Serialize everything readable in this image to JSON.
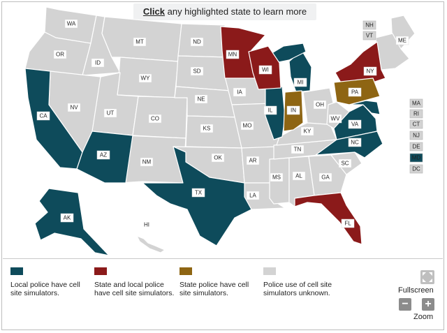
{
  "banner": {
    "link": "Click",
    "text": " any highlighted state to learn more"
  },
  "colors": {
    "local": "#0e4b5b",
    "state_and_local": "#8b1a1a",
    "state_police": "#8e6513",
    "unknown": "#d3d3d3"
  },
  "states": {
    "WA": "WA",
    "OR": "OR",
    "CA": "CA",
    "ID": "ID",
    "NV": "NV",
    "MT": "MT",
    "WY": "WY",
    "UT": "UT",
    "AZ": "AZ",
    "CO": "CO",
    "NM": "NM",
    "ND": "ND",
    "SD": "SD",
    "NE": "NE",
    "KS": "KS",
    "OK": "OK",
    "TX": "TX",
    "MN": "MN",
    "IA": "IA",
    "MO": "MO",
    "AR": "AR",
    "LA": "LA",
    "WI": "WI",
    "IL": "IL",
    "MI": "MI",
    "IN": "IN",
    "OH": "OH",
    "KY": "KY",
    "TN": "TN",
    "MS": "MS",
    "AL": "AL",
    "GA": "GA",
    "FL": "FL",
    "SC": "SC",
    "NC": "NC",
    "VA": "VA",
    "WV": "WV",
    "PA": "PA",
    "NY": "NY",
    "ME": "ME",
    "AK": "AK",
    "HI": "HI"
  },
  "side_states": {
    "NH": "NH",
    "VT": "VT",
    "MA": "MA",
    "RI": "RI",
    "CT": "CT",
    "NJ": "NJ",
    "DE": "DE",
    "MD": "MD",
    "DC": "DC"
  },
  "legend": [
    {
      "key": "local",
      "label": "Local police have cell site simulators."
    },
    {
      "key": "state_and_local",
      "label": "State and local police have cell site simulators."
    },
    {
      "key": "state_police",
      "label": "State police have cell site simulators."
    },
    {
      "key": "unknown",
      "label": "Police use of cell site simulators unknown."
    }
  ],
  "controls": {
    "fullscreen": "Fullscreen",
    "zoom": "Zoom",
    "zoom_out": "−",
    "zoom_in": "+"
  }
}
